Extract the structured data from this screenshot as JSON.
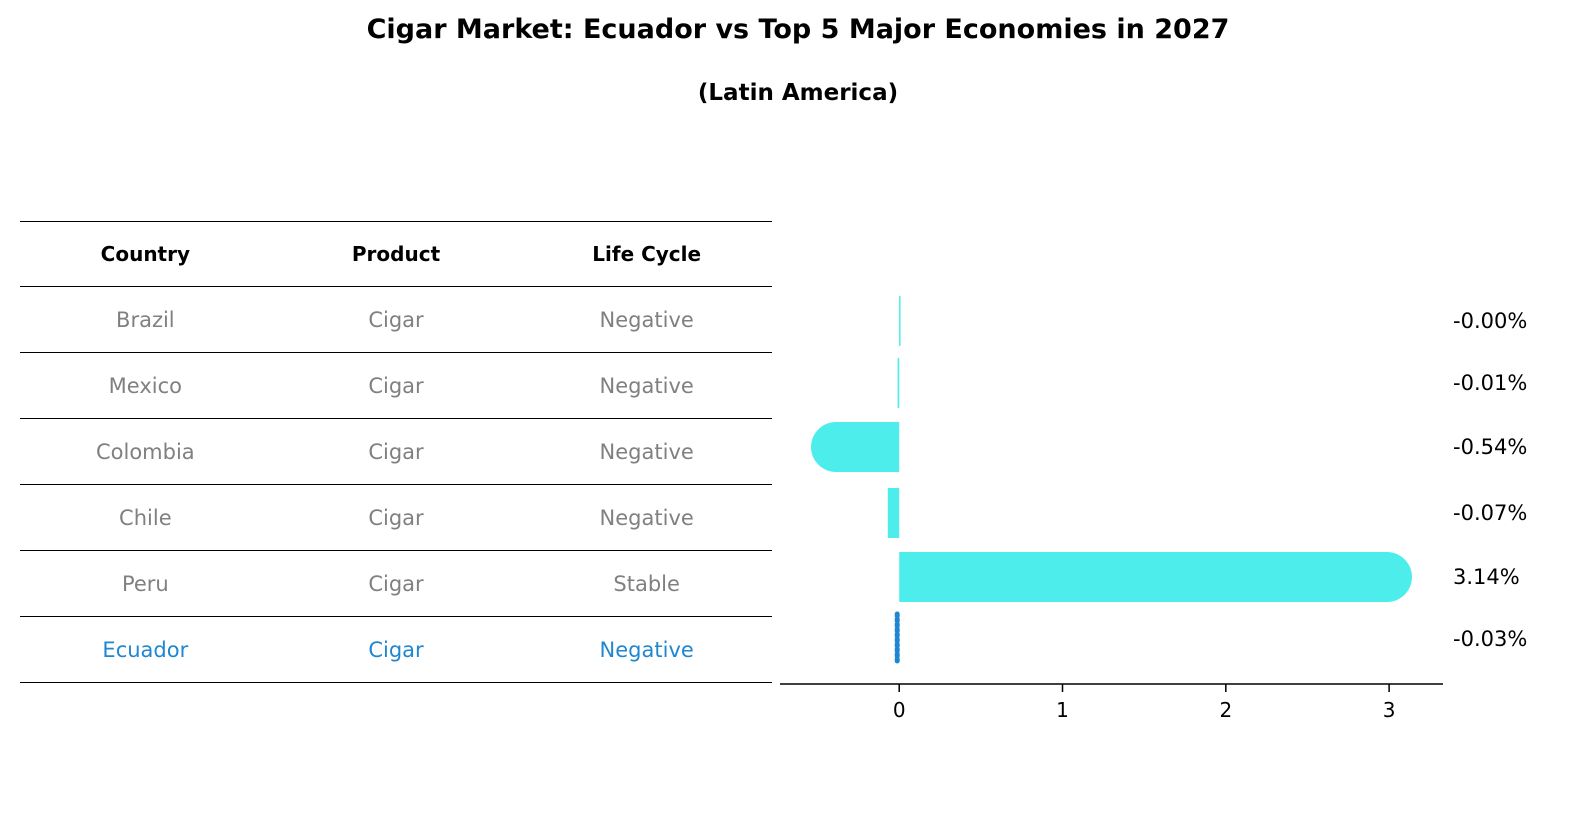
{
  "title": "Cigar Market: Ecuador vs Top 5 Major Economies in 2027",
  "subtitle": "(Latin America)",
  "table": {
    "headers": [
      "Country",
      "Product",
      "Life Cycle"
    ],
    "rows": [
      {
        "country": "Brazil",
        "product": "Cigar",
        "life_cycle": "Negative"
      },
      {
        "country": "Mexico",
        "product": "Cigar",
        "life_cycle": "Negative"
      },
      {
        "country": "Colombia",
        "product": "Cigar",
        "life_cycle": "Negative"
      },
      {
        "country": "Chile",
        "product": "Cigar",
        "life_cycle": "Negative"
      },
      {
        "country": "Peru",
        "product": "Cigar",
        "life_cycle": "Stable"
      },
      {
        "country": "Ecuador",
        "product": "Cigar",
        "life_cycle": "Negative"
      }
    ]
  },
  "chart_data": {
    "type": "bar",
    "orientation": "horizontal",
    "categories": [
      "Brazil",
      "Mexico",
      "Colombia",
      "Chile",
      "Peru",
      "Ecuador"
    ],
    "values": [
      -0.001,
      -0.01,
      -0.54,
      -0.07,
      3.14,
      -0.03
    ],
    "value_labels": [
      "-0.00%",
      "-0.01%",
      "-0.54%",
      "-0.07%",
      "3.14%",
      "-0.03%"
    ],
    "xlim": [
      -0.73,
      3.33
    ],
    "xticks": [
      0,
      1,
      2,
      3
    ],
    "xtick_labels": [
      "0",
      "1",
      "2",
      "3"
    ],
    "grid": false,
    "colors": {
      "bar": "#4dedec",
      "highlight": "#1f87d1"
    }
  }
}
